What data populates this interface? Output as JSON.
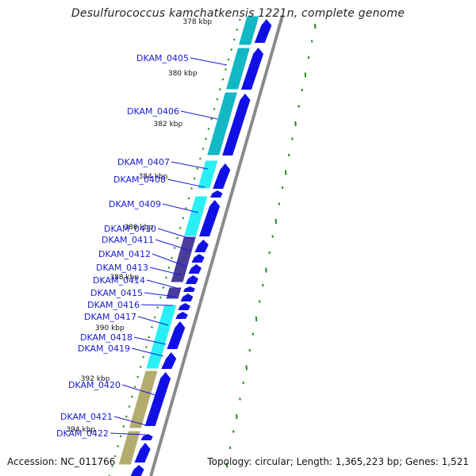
{
  "title": "Desulfurococcus kamchatkensis 1221n, complete genome",
  "footer": {
    "accession": "Accession: NC_011766",
    "topology": "Topology: circular; Length: 1,365,223 bp; Genes: 1,521"
  },
  "colors": {
    "backbone": "#8a8a8a",
    "forward_strand": "#1010e6",
    "cog_teal": "#12b8c4",
    "cog_cyan": "#29f0f5",
    "cog_purple": "#4a3d9a",
    "cog_khaki": "#b3ac6e",
    "tick": "#1f8a1f",
    "label": "#1a1ad6"
  },
  "kbp_marks": [
    "378 kbp",
    "380 kbp",
    "382 kbp",
    "384 kbp",
    "386 kbp",
    "388 kbp",
    "390 kbp",
    "392 kbp",
    "394 kbp"
  ],
  "genes": [
    {
      "label": "DKAM_0405",
      "cog": "teal"
    },
    {
      "label": "DKAM_0406",
      "cog": "teal"
    },
    {
      "label": "DKAM_0407",
      "cog": "cyan"
    },
    {
      "label": "DKAM_0408",
      "cog": "none"
    },
    {
      "label": "DKAM_0409",
      "cog": "cyan"
    },
    {
      "label": "DKAM_0410",
      "cog": "purple"
    },
    {
      "label": "DKAM_0411",
      "cog": "purple"
    },
    {
      "label": "DKAM_0412",
      "cog": "purple"
    },
    {
      "label": "DKAM_0413",
      "cog": "purple"
    },
    {
      "label": "DKAM_0414",
      "cog": "none"
    },
    {
      "label": "DKAM_0415",
      "cog": "purple"
    },
    {
      "label": "DKAM_0416",
      "cog": "cyan"
    },
    {
      "label": "DKAM_0417",
      "cog": "cyan"
    },
    {
      "label": "DKAM_0418",
      "cog": "cyan"
    },
    {
      "label": "DKAM_0419",
      "cog": "cyan"
    },
    {
      "label": "DKAM_0420",
      "cog": "khaki"
    },
    {
      "label": "DKAM_0421",
      "cog": "khaki"
    },
    {
      "label": "DKAM_0422",
      "cog": "khaki"
    }
  ]
}
